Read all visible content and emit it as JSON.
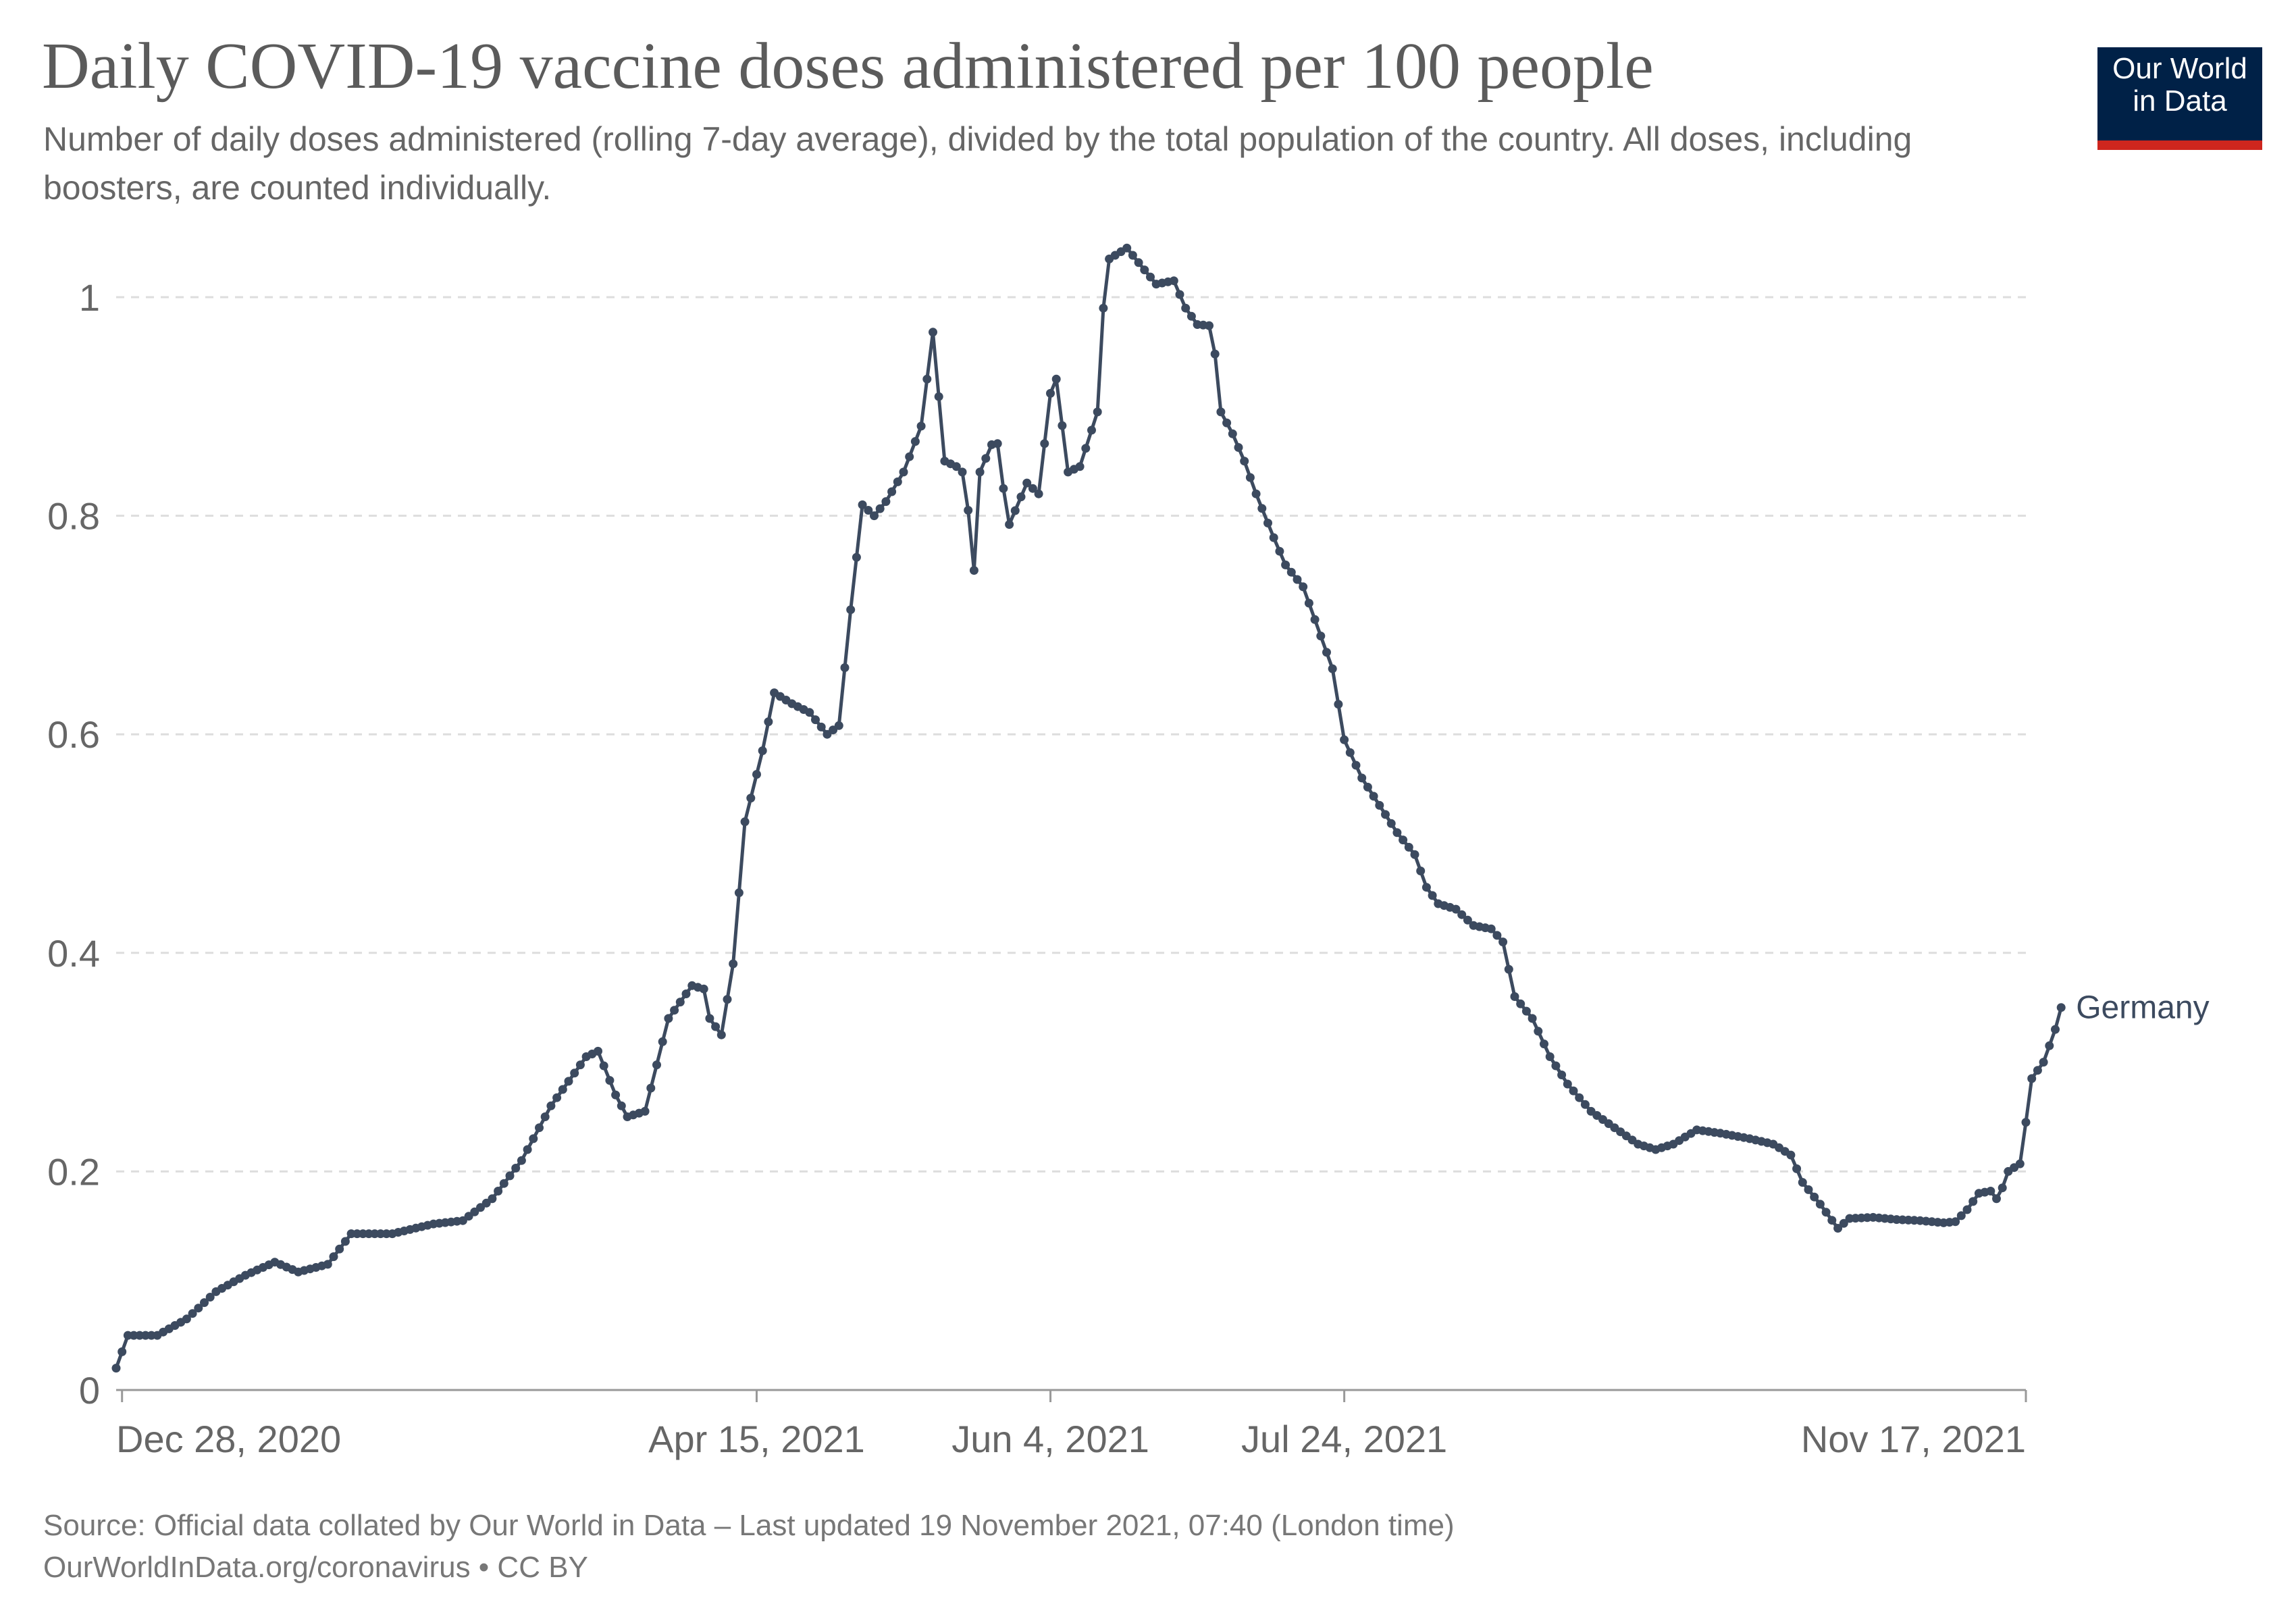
{
  "header": {
    "title": "Daily COVID-19 vaccine doses administered per 100 people",
    "subtitle": "Number of daily doses administered (rolling 7-day average), divided by the total population of the country. All doses, including boosters, are counted individually."
  },
  "logo": {
    "line1": "Our World",
    "line2": "in Data"
  },
  "footer": {
    "source": "Source: Official data collated by Our World in Data – Last updated 19 November 2021, 07:40 (London time)",
    "link": "OurWorldInData.org/coronavirus • CC BY"
  },
  "colors": {
    "series": "#3c4a5f",
    "logo_bg": "#002147",
    "logo_bar": "#ce261e",
    "grid": "#dddddd"
  },
  "chart_data": {
    "type": "line",
    "title": "Daily COVID-19 vaccine doses administered per 100 people",
    "ylim": [
      0,
      1
    ],
    "yticks": [
      0,
      0.2,
      0.4,
      0.6,
      0.8,
      1
    ],
    "ytick_labels": [
      "0",
      "0.2",
      "0.4",
      "0.6",
      "0.8",
      "1"
    ],
    "xlim": [
      "2020-12-27",
      "2021-11-17"
    ],
    "xticks": [
      "2020-12-28",
      "2021-04-15",
      "2021-06-04",
      "2021-07-24",
      "2021-11-17"
    ],
    "xtick_labels": [
      "Dec 28, 2020",
      "Apr 15, 2021",
      "Jun 4, 2021",
      "Jul 24, 2021",
      "Nov 17, 2021"
    ],
    "grid": "horizontal dashed",
    "markers": true,
    "series": [
      {
        "name": "Germany",
        "points": [
          [
            "2020-12-27",
            0.02
          ],
          [
            "2020-12-29",
            0.05
          ],
          [
            "2021-01-03",
            0.05
          ],
          [
            "2021-01-08",
            0.065
          ],
          [
            "2021-01-13",
            0.09
          ],
          [
            "2021-01-18",
            0.105
          ],
          [
            "2021-01-23",
            0.117
          ],
          [
            "2021-01-27",
            0.108
          ],
          [
            "2021-02-01",
            0.115
          ],
          [
            "2021-02-05",
            0.143
          ],
          [
            "2021-02-12",
            0.143
          ],
          [
            "2021-02-19",
            0.152
          ],
          [
            "2021-02-24",
            0.155
          ],
          [
            "2021-03-01",
            0.175
          ],
          [
            "2021-03-06",
            0.21
          ],
          [
            "2021-03-11",
            0.26
          ],
          [
            "2021-03-17",
            0.305
          ],
          [
            "2021-03-19",
            0.31
          ],
          [
            "2021-03-22",
            0.27
          ],
          [
            "2021-03-24",
            0.25
          ],
          [
            "2021-03-27",
            0.255
          ],
          [
            "2021-03-31",
            0.34
          ],
          [
            "2021-04-04",
            0.37
          ],
          [
            "2021-04-06",
            0.367
          ],
          [
            "2021-04-07",
            0.34
          ],
          [
            "2021-04-09",
            0.325
          ],
          [
            "2021-04-11",
            0.39
          ],
          [
            "2021-04-13",
            0.52
          ],
          [
            "2021-04-16",
            0.585
          ],
          [
            "2021-04-18",
            0.638
          ],
          [
            "2021-04-21",
            0.628
          ],
          [
            "2021-04-24",
            0.62
          ],
          [
            "2021-04-27",
            0.6
          ],
          [
            "2021-04-29",
            0.608
          ],
          [
            "2021-05-01",
            0.714
          ],
          [
            "2021-05-03",
            0.81
          ],
          [
            "2021-05-05",
            0.8
          ],
          [
            "2021-05-07",
            0.813
          ],
          [
            "2021-05-10",
            0.84
          ],
          [
            "2021-05-13",
            0.882
          ],
          [
            "2021-05-15",
            0.968
          ],
          [
            "2021-05-17",
            0.85
          ],
          [
            "2021-05-19",
            0.845
          ],
          [
            "2021-05-20",
            0.84
          ],
          [
            "2021-05-21",
            0.805
          ],
          [
            "2021-05-22",
            0.75
          ],
          [
            "2021-05-23",
            0.84
          ],
          [
            "2021-05-25",
            0.865
          ],
          [
            "2021-05-26",
            0.866
          ],
          [
            "2021-05-27",
            0.825
          ],
          [
            "2021-05-28",
            0.792
          ],
          [
            "2021-05-31",
            0.83
          ],
          [
            "2021-06-02",
            0.82
          ],
          [
            "2021-06-04",
            0.912
          ],
          [
            "2021-06-05",
            0.925
          ],
          [
            "2021-06-07",
            0.84
          ],
          [
            "2021-06-09",
            0.845
          ],
          [
            "2021-06-12",
            0.895
          ],
          [
            "2021-06-13",
            0.99
          ],
          [
            "2021-06-14",
            1.035
          ],
          [
            "2021-06-17",
            1.045
          ],
          [
            "2021-06-20",
            1.025
          ],
          [
            "2021-06-22",
            1.012
          ],
          [
            "2021-06-25",
            1.015
          ],
          [
            "2021-06-27",
            0.99
          ],
          [
            "2021-06-29",
            0.975
          ],
          [
            "2021-07-01",
            0.974
          ],
          [
            "2021-07-02",
            0.948
          ],
          [
            "2021-07-03",
            0.895
          ],
          [
            "2021-07-05",
            0.875
          ],
          [
            "2021-07-07",
            0.85
          ],
          [
            "2021-07-09",
            0.82
          ],
          [
            "2021-07-12",
            0.78
          ],
          [
            "2021-07-14",
            0.755
          ],
          [
            "2021-07-17",
            0.735
          ],
          [
            "2021-07-20",
            0.69
          ],
          [
            "2021-07-22",
            0.66
          ],
          [
            "2021-07-24",
            0.595
          ],
          [
            "2021-07-27",
            0.56
          ],
          [
            "2021-07-30",
            0.535
          ],
          [
            "2021-08-02",
            0.51
          ],
          [
            "2021-08-05",
            0.49
          ],
          [
            "2021-08-07",
            0.46
          ],
          [
            "2021-08-09",
            0.445
          ],
          [
            "2021-08-12",
            0.44
          ],
          [
            "2021-08-15",
            0.425
          ],
          [
            "2021-08-18",
            0.422
          ],
          [
            "2021-08-20",
            0.41
          ],
          [
            "2021-08-22",
            0.36
          ],
          [
            "2021-08-25",
            0.34
          ],
          [
            "2021-08-28",
            0.305
          ],
          [
            "2021-08-31",
            0.28
          ],
          [
            "2021-09-04",
            0.255
          ],
          [
            "2021-09-08",
            0.24
          ],
          [
            "2021-09-12",
            0.225
          ],
          [
            "2021-09-15",
            0.22
          ],
          [
            "2021-09-18",
            0.225
          ],
          [
            "2021-09-22",
            0.238
          ],
          [
            "2021-09-26",
            0.235
          ],
          [
            "2021-10-01",
            0.23
          ],
          [
            "2021-10-05",
            0.225
          ],
          [
            "2021-10-08",
            0.215
          ],
          [
            "2021-10-10",
            0.19
          ],
          [
            "2021-10-13",
            0.17
          ],
          [
            "2021-10-16",
            0.148
          ],
          [
            "2021-10-18",
            0.157
          ],
          [
            "2021-10-22",
            0.158
          ],
          [
            "2021-10-26",
            0.156
          ],
          [
            "2021-10-30",
            0.155
          ],
          [
            "2021-11-03",
            0.153
          ],
          [
            "2021-11-05",
            0.154
          ],
          [
            "2021-11-07",
            0.165
          ],
          [
            "2021-11-09",
            0.18
          ],
          [
            "2021-11-11",
            0.182
          ],
          [
            "2021-11-12",
            0.175
          ],
          [
            "2021-11-13",
            0.185
          ],
          [
            "2021-11-14",
            0.2
          ],
          [
            "2021-11-16",
            0.207
          ],
          [
            "2021-11-17",
            0.245
          ],
          [
            "2021-11-18",
            0.285
          ],
          [
            "2021-11-20",
            0.3
          ],
          [
            "2021-11-22",
            0.33
          ],
          [
            "2021-11-23",
            0.35
          ]
        ]
      }
    ]
  }
}
